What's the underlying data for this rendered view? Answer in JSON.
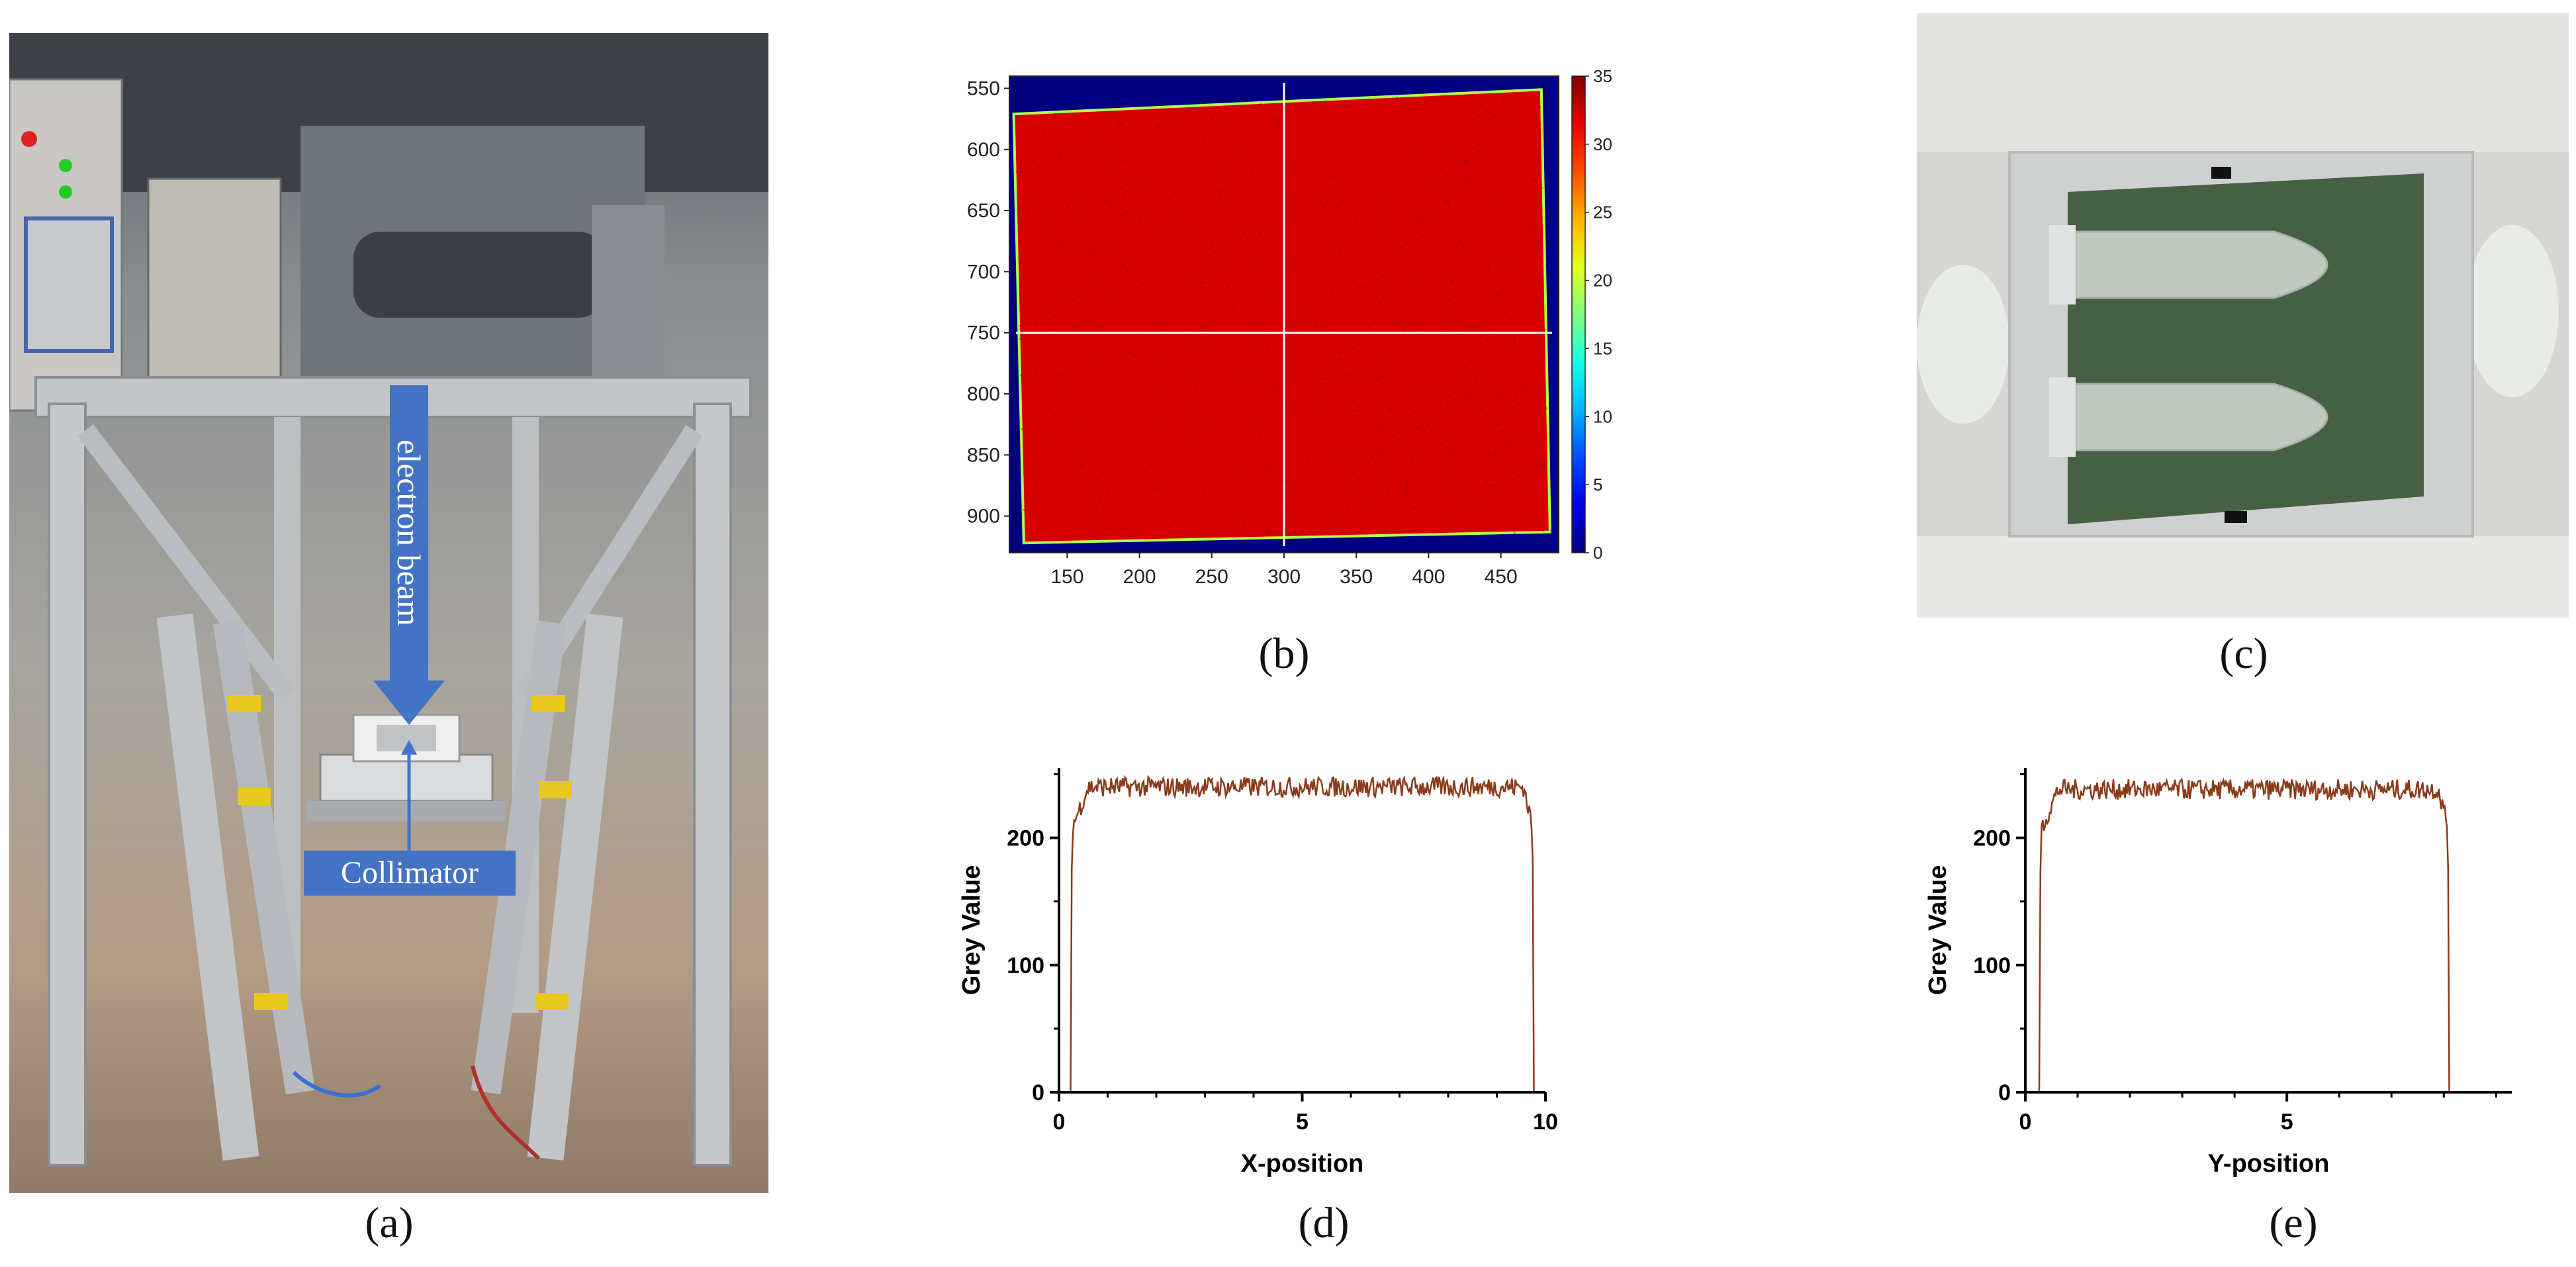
{
  "figure": {
    "captions": [
      "(a)",
      "(b)",
      "(c)",
      "(d)",
      "(e)"
    ]
  },
  "photo_a": {
    "labels": {
      "beam": "electron beam",
      "collimator": "Collimator"
    },
    "colors": {
      "label_fill": "#4472c4",
      "label_text": "#ffffff"
    }
  },
  "photo_c": {
    "colors": {
      "film": "#3e5a3c",
      "background": "#e4e4e1"
    }
  },
  "chart_data": [
    {
      "type": "heatmap",
      "panel": "(b)",
      "x_ticks": [
        150,
        200,
        250,
        300,
        350,
        400,
        450
      ],
      "y_ticks": [
        550,
        600,
        650,
        700,
        750,
        800,
        850,
        900
      ],
      "xlim": [
        110,
        490
      ],
      "ylim": [
        540,
        930
      ],
      "y_inverted": true,
      "colorbar": {
        "ticks": [
          0,
          5,
          10,
          15,
          20,
          25,
          30,
          35
        ],
        "range": [
          0,
          35
        ],
        "colormap": "jet"
      },
      "field_value_approx": 32,
      "background_value": 0,
      "field_corners": [
        [
          113,
          571
        ],
        [
          478,
          551
        ],
        [
          484,
          913
        ],
        [
          120,
          922
        ]
      ],
      "crosshair": {
        "x": 300,
        "y": 750
      },
      "grid": false
    },
    {
      "type": "line",
      "panel": "(d)",
      "xlabel": "X-position",
      "ylabel": "Grey Value",
      "x_ticks": [
        0,
        5,
        10
      ],
      "y_ticks": [
        0,
        100,
        200
      ],
      "xlim": [
        0,
        10
      ],
      "ylim": [
        0,
        255
      ],
      "line_color": "#8b3a1a",
      "profile": {
        "left_edge": 0.25,
        "right_edge": 9.75,
        "plateau_mean": 240,
        "plateau_noise": 8
      },
      "grid": false
    },
    {
      "type": "line",
      "panel": "(e)",
      "xlabel": "Y-position",
      "ylabel": "Grey Value",
      "x_ticks": [
        0,
        5
      ],
      "y_ticks": [
        0,
        100,
        200
      ],
      "xlim": [
        0,
        9.3
      ],
      "ylim": [
        0,
        255
      ],
      "line_color": "#8b3a1a",
      "profile": {
        "left_edge": 0.28,
        "right_edge": 8.1,
        "plateau_mean": 238,
        "plateau_noise": 8
      },
      "grid": false
    }
  ]
}
